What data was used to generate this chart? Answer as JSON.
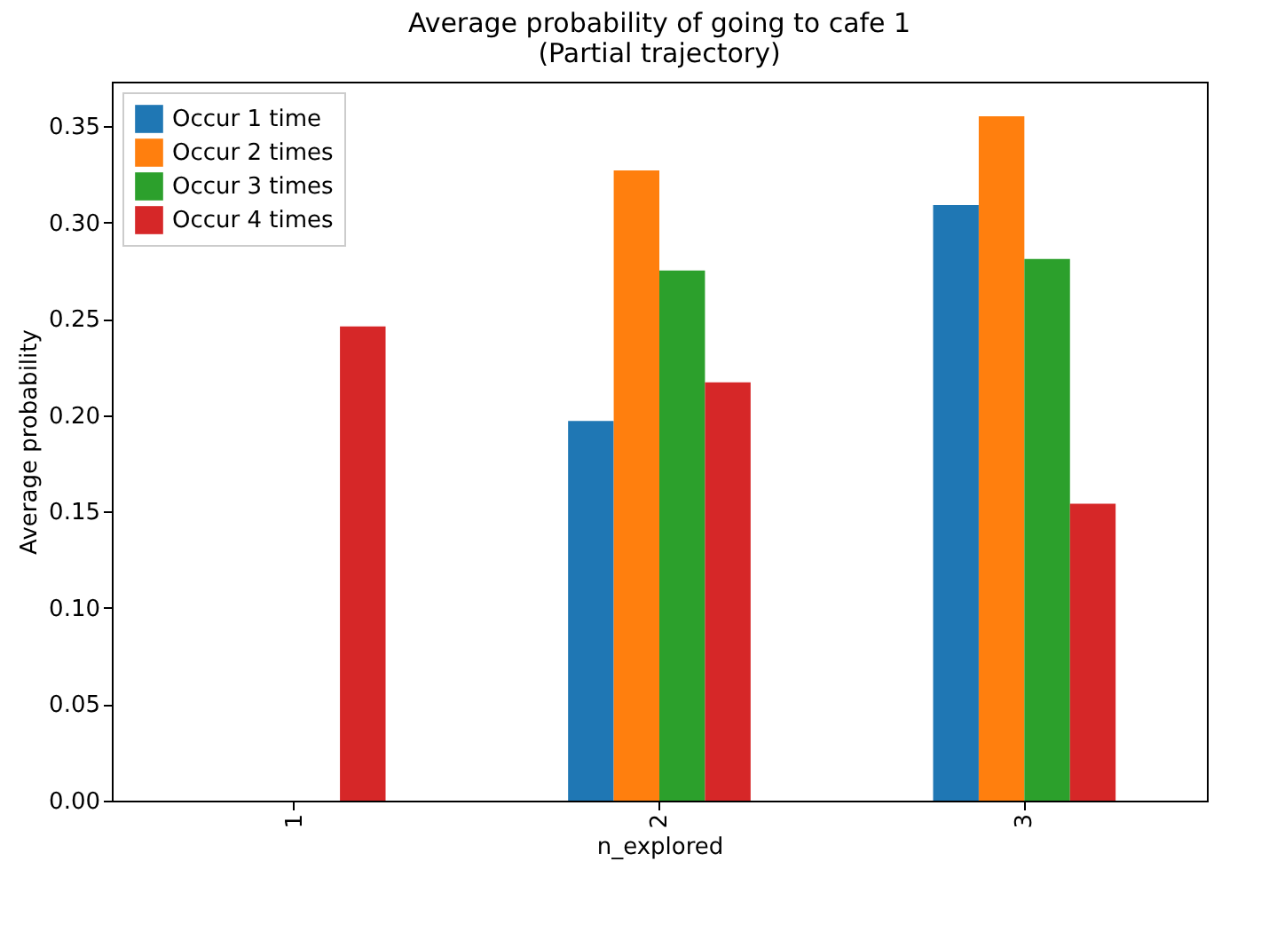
{
  "chart_data": {
    "type": "bar",
    "title": "Average probability of going to cafe 1",
    "subtitle": "(Partial trajectory)",
    "xlabel": "n_explored",
    "ylabel": "Average probability",
    "categories": [
      "1",
      "2",
      "3"
    ],
    "series": [
      {
        "name": "Occur 1 time",
        "color": "#1f77b4",
        "values": [
          null,
          0.197,
          0.309
        ]
      },
      {
        "name": "Occur 2 times",
        "color": "#ff7f0e",
        "values": [
          null,
          0.327,
          0.355
        ]
      },
      {
        "name": "Occur 3 times",
        "color": "#2ca02c",
        "values": [
          null,
          0.275,
          0.281
        ]
      },
      {
        "name": "Occur 4 times",
        "color": "#d62728",
        "values": [
          0.246,
          0.217,
          0.154
        ]
      }
    ],
    "ylim": [
      0,
      0.373
    ],
    "yticks": [
      {
        "value": 0,
        "label": "0.00"
      },
      0.05,
      {
        "value": 0.1,
        "label": "0.10"
      },
      0.15,
      {
        "value": 0.2,
        "label": "0.20"
      },
      0.25,
      {
        "value": 0.3,
        "label": "0.30"
      },
      0.35
    ],
    "grid": false,
    "legend": "top left"
  }
}
